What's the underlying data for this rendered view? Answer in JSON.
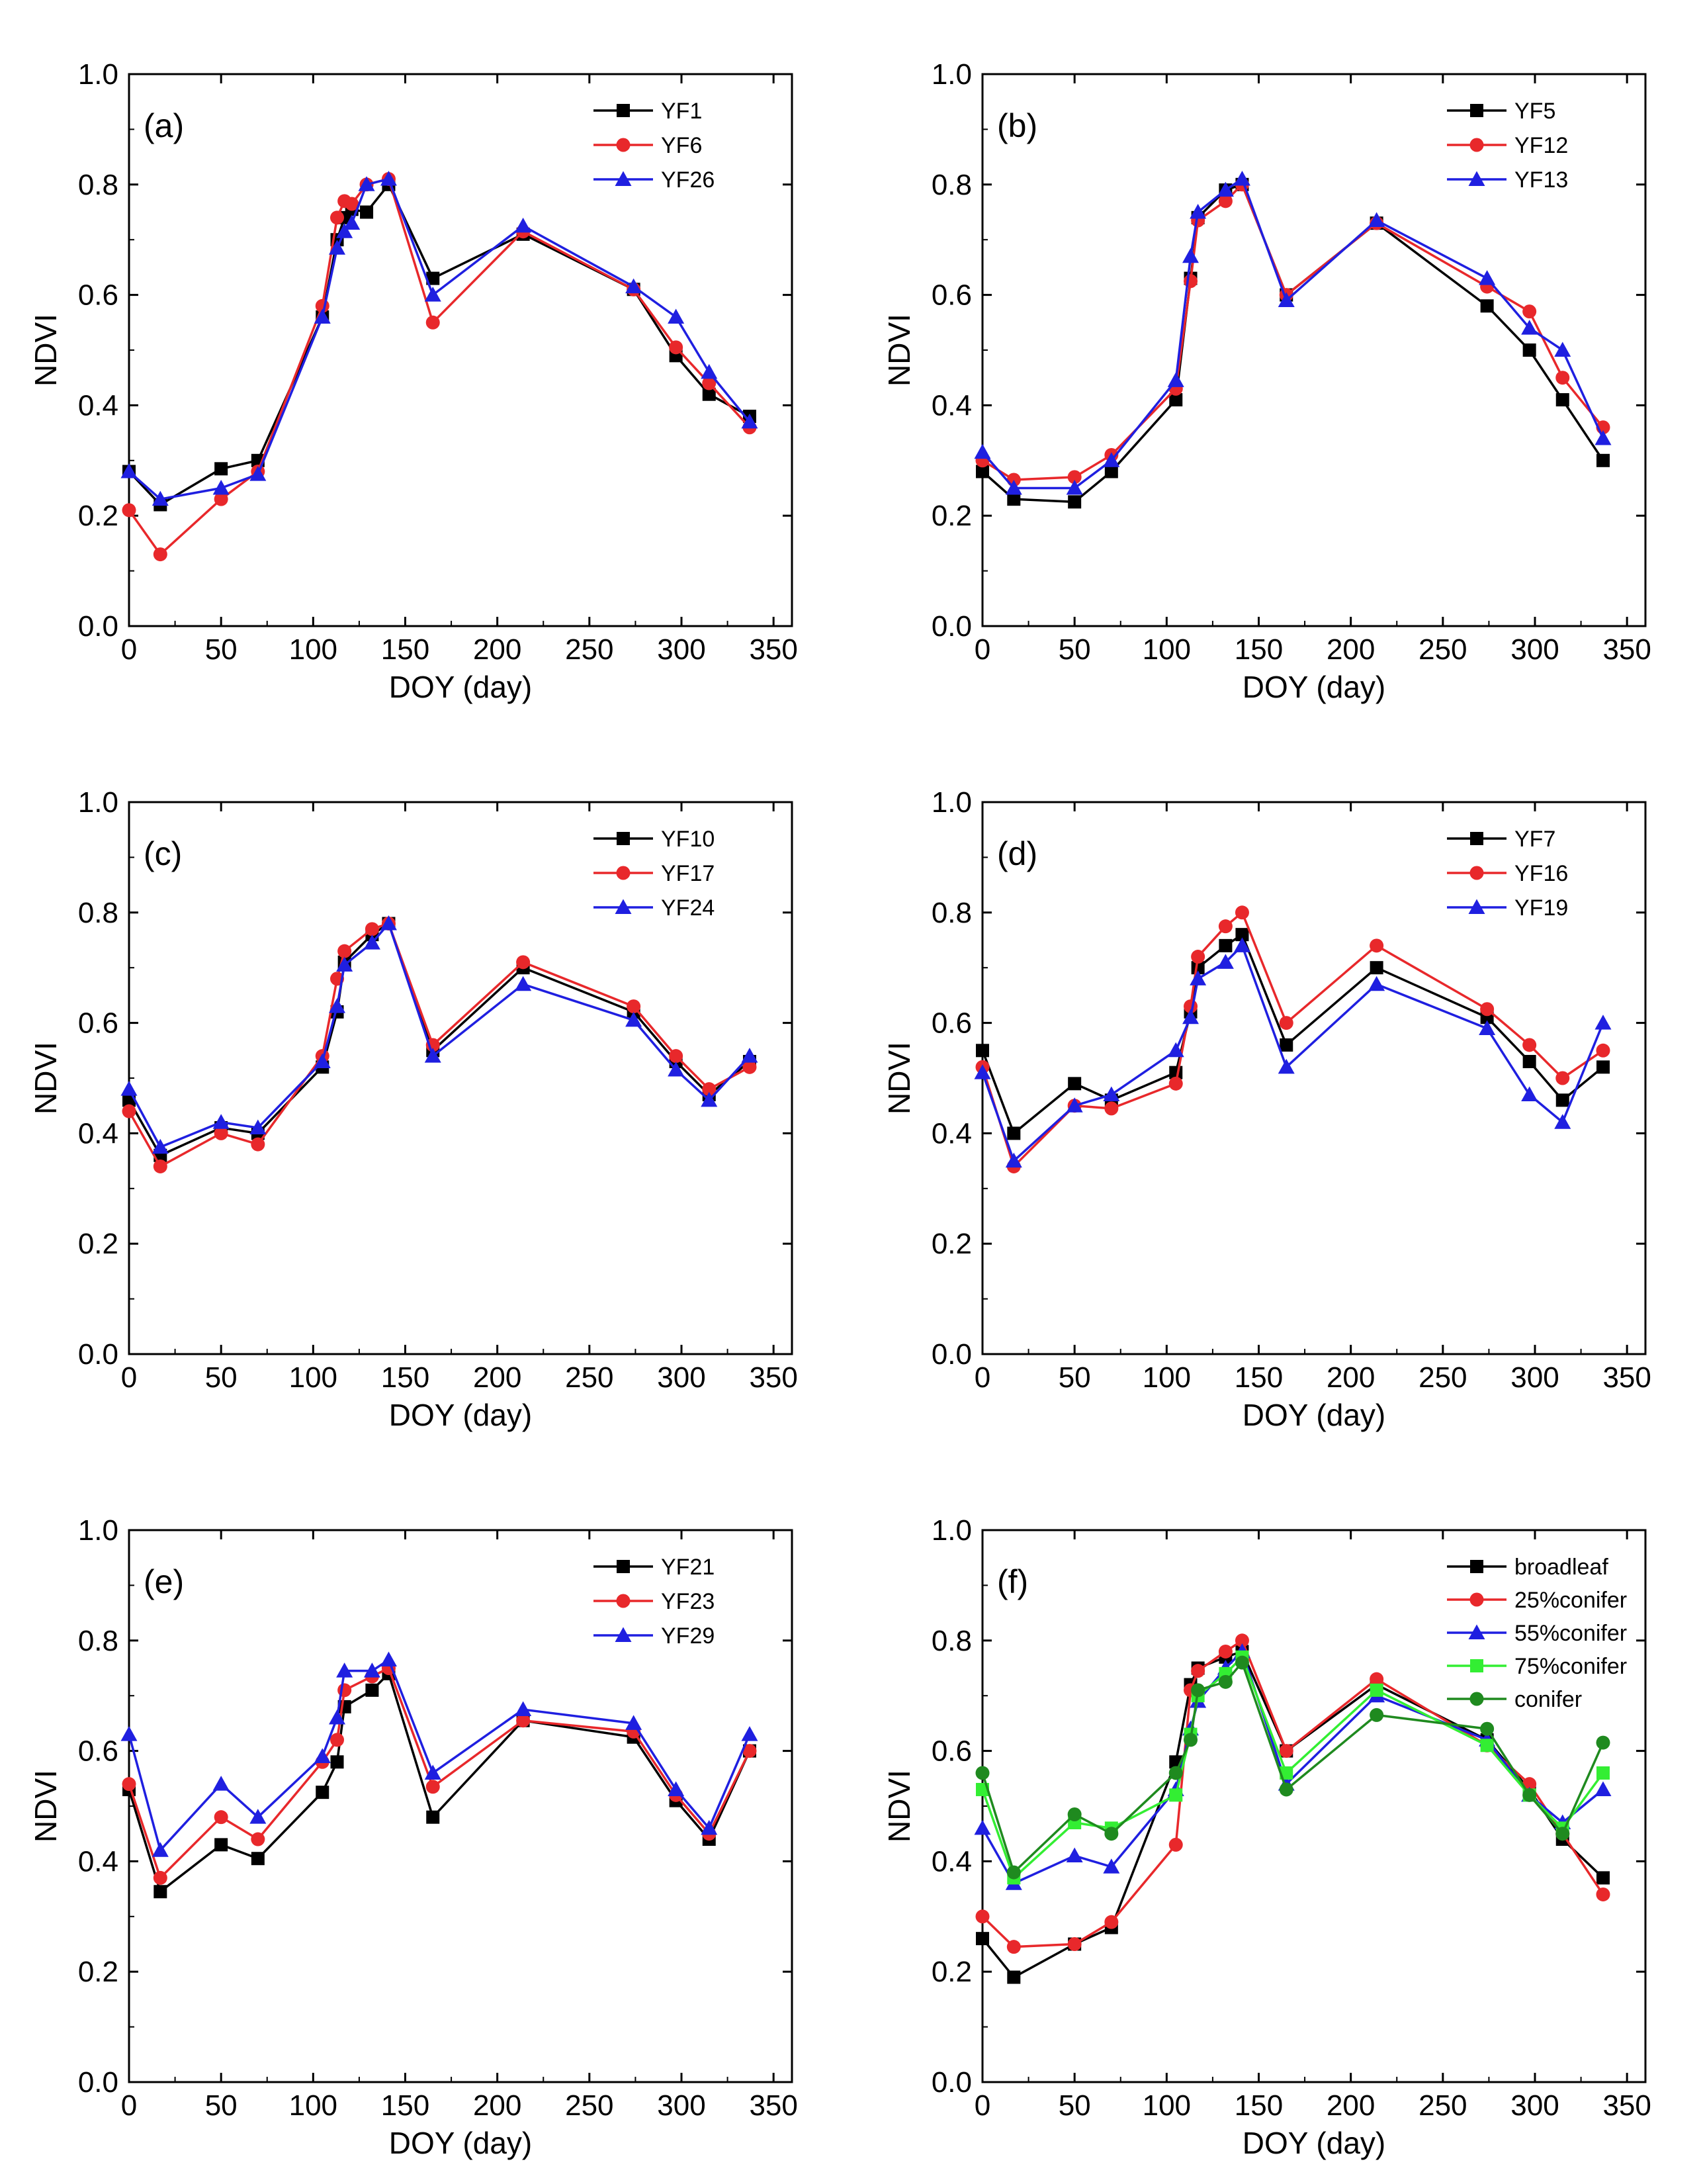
{
  "figure": {
    "x_axis_label": "DOY (day)",
    "y_axis_label": "NDVI",
    "x_ticks": [
      0,
      50,
      100,
      150,
      200,
      250,
      300,
      350
    ],
    "y_ticks": [
      "0.0",
      "0.2",
      "0.4",
      "0.6",
      "0.8",
      "1.0"
    ]
  },
  "chart_data": [
    {
      "type": "line",
      "panel": "(a)",
      "xlabel": "DOY (day)",
      "ylabel": "NDVI",
      "xlim": [
        0,
        360
      ],
      "ylim": [
        0,
        1.0
      ],
      "legend_position": "top-right",
      "series": [
        {
          "name": "YF1",
          "color": "#000000",
          "marker": "square",
          "x": [
            0,
            17,
            50,
            70,
            105,
            113,
            117,
            121,
            129,
            141,
            165,
            214,
            274,
            297,
            315,
            337
          ],
          "y": [
            0.28,
            0.22,
            0.285,
            0.3,
            0.56,
            0.7,
            0.74,
            0.755,
            0.75,
            0.8,
            0.63,
            0.71,
            0.61,
            0.49,
            0.42,
            0.38
          ]
        },
        {
          "name": "YF6",
          "color": "#e8282b",
          "marker": "circle",
          "x": [
            0,
            17,
            50,
            70,
            105,
            113,
            117,
            121,
            129,
            141,
            165,
            214,
            274,
            297,
            315,
            337
          ],
          "y": [
            0.21,
            0.13,
            0.23,
            0.28,
            0.58,
            0.74,
            0.77,
            0.765,
            0.8,
            0.81,
            0.55,
            0.715,
            0.61,
            0.505,
            0.44,
            0.36
          ]
        },
        {
          "name": "YF26",
          "color": "#1f1fe0",
          "marker": "triangle",
          "x": [
            0,
            17,
            50,
            70,
            105,
            113,
            117,
            121,
            129,
            141,
            165,
            214,
            274,
            297,
            315,
            337
          ],
          "y": [
            0.28,
            0.23,
            0.25,
            0.275,
            0.56,
            0.685,
            0.715,
            0.73,
            0.8,
            0.81,
            0.6,
            0.725,
            0.615,
            0.56,
            0.46,
            0.37
          ]
        }
      ]
    },
    {
      "type": "line",
      "panel": "(b)",
      "xlabel": "DOY (day)",
      "ylabel": "NDVI",
      "xlim": [
        0,
        360
      ],
      "ylim": [
        0,
        1.0
      ],
      "legend_position": "top-right",
      "series": [
        {
          "name": "YF5",
          "color": "#000000",
          "marker": "square",
          "x": [
            0,
            17,
            50,
            70,
            105,
            113,
            117,
            132,
            141,
            165,
            214,
            274,
            297,
            315,
            337
          ],
          "y": [
            0.28,
            0.23,
            0.225,
            0.28,
            0.41,
            0.63,
            0.74,
            0.79,
            0.8,
            0.6,
            0.73,
            0.58,
            0.5,
            0.41,
            0.3
          ]
        },
        {
          "name": "YF12",
          "color": "#e8282b",
          "marker": "circle",
          "x": [
            0,
            17,
            50,
            70,
            105,
            113,
            117,
            132,
            141,
            165,
            214,
            274,
            297,
            315,
            337
          ],
          "y": [
            0.3,
            0.265,
            0.27,
            0.31,
            0.43,
            0.625,
            0.735,
            0.77,
            0.8,
            0.6,
            0.73,
            0.615,
            0.57,
            0.45,
            0.36
          ]
        },
        {
          "name": "YF13",
          "color": "#1f1fe0",
          "marker": "triangle",
          "x": [
            0,
            17,
            50,
            70,
            105,
            113,
            117,
            132,
            141,
            165,
            214,
            274,
            297,
            315,
            337
          ],
          "y": [
            0.315,
            0.25,
            0.25,
            0.3,
            0.445,
            0.67,
            0.75,
            0.79,
            0.81,
            0.59,
            0.735,
            0.63,
            0.54,
            0.5,
            0.34
          ]
        }
      ]
    },
    {
      "type": "line",
      "panel": "(c)",
      "xlabel": "DOY (day)",
      "ylabel": "NDVI",
      "xlim": [
        0,
        360
      ],
      "ylim": [
        0,
        1.0
      ],
      "legend_position": "top-right",
      "series": [
        {
          "name": "YF10",
          "color": "#000000",
          "marker": "square",
          "x": [
            0,
            17,
            50,
            70,
            105,
            113,
            117,
            132,
            141,
            165,
            214,
            274,
            297,
            315,
            337
          ],
          "y": [
            0.46,
            0.36,
            0.41,
            0.4,
            0.52,
            0.62,
            0.71,
            0.76,
            0.78,
            0.55,
            0.7,
            0.62,
            0.53,
            0.47,
            0.53
          ]
        },
        {
          "name": "YF17",
          "color": "#e8282b",
          "marker": "circle",
          "x": [
            0,
            17,
            50,
            70,
            105,
            113,
            117,
            132,
            141,
            165,
            214,
            274,
            297,
            315,
            337
          ],
          "y": [
            0.44,
            0.34,
            0.4,
            0.38,
            0.54,
            0.68,
            0.73,
            0.77,
            0.78,
            0.56,
            0.71,
            0.63,
            0.54,
            0.48,
            0.52
          ]
        },
        {
          "name": "YF24",
          "color": "#1f1fe0",
          "marker": "triangle",
          "x": [
            0,
            17,
            50,
            70,
            105,
            113,
            117,
            132,
            141,
            165,
            214,
            274,
            297,
            315,
            337
          ],
          "y": [
            0.48,
            0.375,
            0.42,
            0.41,
            0.53,
            0.63,
            0.705,
            0.745,
            0.78,
            0.54,
            0.67,
            0.605,
            0.515,
            0.46,
            0.54
          ]
        }
      ]
    },
    {
      "type": "line",
      "panel": "(d)",
      "xlabel": "DOY (day)",
      "ylabel": "NDVI",
      "xlim": [
        0,
        360
      ],
      "ylim": [
        0,
        1.0
      ],
      "legend_position": "top-right",
      "series": [
        {
          "name": "YF7",
          "color": "#000000",
          "marker": "square",
          "x": [
            0,
            17,
            50,
            70,
            105,
            113,
            117,
            132,
            141,
            165,
            214,
            274,
            297,
            315,
            337
          ],
          "y": [
            0.55,
            0.4,
            0.49,
            0.46,
            0.51,
            0.62,
            0.7,
            0.74,
            0.76,
            0.56,
            0.7,
            0.61,
            0.53,
            0.46,
            0.52
          ]
        },
        {
          "name": "YF16",
          "color": "#e8282b",
          "marker": "circle",
          "x": [
            0,
            17,
            50,
            70,
            105,
            113,
            117,
            132,
            141,
            165,
            214,
            274,
            297,
            315,
            337
          ],
          "y": [
            0.52,
            0.34,
            0.45,
            0.445,
            0.49,
            0.63,
            0.72,
            0.775,
            0.8,
            0.6,
            0.74,
            0.625,
            0.56,
            0.5,
            0.55
          ]
        },
        {
          "name": "YF19",
          "color": "#1f1fe0",
          "marker": "triangle",
          "x": [
            0,
            17,
            50,
            70,
            105,
            113,
            117,
            132,
            141,
            165,
            214,
            274,
            297,
            315,
            337
          ],
          "y": [
            0.51,
            0.35,
            0.45,
            0.47,
            0.55,
            0.61,
            0.68,
            0.71,
            0.74,
            0.52,
            0.67,
            0.59,
            0.47,
            0.42,
            0.6
          ]
        }
      ]
    },
    {
      "type": "line",
      "panel": "(e)",
      "xlabel": "DOY (day)",
      "ylabel": "NDVI",
      "xlim": [
        0,
        360
      ],
      "ylim": [
        0,
        1.0
      ],
      "legend_position": "top-right",
      "series": [
        {
          "name": "YF21",
          "color": "#000000",
          "marker": "square",
          "x": [
            0,
            17,
            50,
            70,
            105,
            113,
            117,
            132,
            141,
            165,
            214,
            274,
            297,
            315,
            337
          ],
          "y": [
            0.53,
            0.345,
            0.43,
            0.405,
            0.525,
            0.58,
            0.68,
            0.71,
            0.74,
            0.48,
            0.655,
            0.625,
            0.51,
            0.44,
            0.6
          ]
        },
        {
          "name": "YF23",
          "color": "#e8282b",
          "marker": "circle",
          "x": [
            0,
            17,
            50,
            70,
            105,
            113,
            117,
            132,
            141,
            165,
            214,
            274,
            297,
            315,
            337
          ],
          "y": [
            0.54,
            0.37,
            0.48,
            0.44,
            0.58,
            0.62,
            0.71,
            0.735,
            0.75,
            0.535,
            0.655,
            0.635,
            0.52,
            0.45,
            0.6
          ]
        },
        {
          "name": "YF29",
          "color": "#1f1fe0",
          "marker": "triangle",
          "x": [
            0,
            17,
            50,
            70,
            105,
            113,
            117,
            132,
            141,
            165,
            214,
            274,
            297,
            315,
            337
          ],
          "y": [
            0.63,
            0.42,
            0.54,
            0.48,
            0.59,
            0.66,
            0.745,
            0.745,
            0.765,
            0.56,
            0.675,
            0.65,
            0.53,
            0.46,
            0.63
          ]
        }
      ]
    },
    {
      "type": "line",
      "panel": "(f)",
      "xlabel": "DOY (day)",
      "ylabel": "NDVI",
      "xlim": [
        0,
        360
      ],
      "ylim": [
        0,
        1.0
      ],
      "legend_position": "top-right",
      "series": [
        {
          "name": "broadleaf",
          "color": "#000000",
          "marker": "square",
          "x": [
            0,
            17,
            50,
            70,
            105,
            113,
            117,
            132,
            141,
            165,
            214,
            274,
            297,
            315,
            337
          ],
          "y": [
            0.26,
            0.19,
            0.25,
            0.28,
            0.58,
            0.72,
            0.75,
            0.77,
            0.78,
            0.6,
            0.72,
            0.62,
            0.53,
            0.44,
            0.37
          ]
        },
        {
          "name": "25%conifer",
          "color": "#e8282b",
          "marker": "circle",
          "x": [
            0,
            17,
            50,
            70,
            105,
            113,
            117,
            132,
            141,
            165,
            214,
            274,
            297,
            315,
            337
          ],
          "y": [
            0.3,
            0.245,
            0.25,
            0.29,
            0.43,
            0.71,
            0.745,
            0.78,
            0.8,
            0.6,
            0.73,
            0.61,
            0.54,
            0.45,
            0.34
          ]
        },
        {
          "name": "55%conifer",
          "color": "#1f1fe0",
          "marker": "triangle",
          "x": [
            0,
            17,
            50,
            70,
            105,
            113,
            117,
            132,
            141,
            165,
            214,
            274,
            297,
            315,
            337
          ],
          "y": [
            0.46,
            0.36,
            0.41,
            0.39,
            0.53,
            0.64,
            0.69,
            0.75,
            0.78,
            0.54,
            0.7,
            0.62,
            0.52,
            0.47,
            0.53
          ]
        },
        {
          "name": "75%conifer",
          "color": "#33ee33",
          "marker": "square",
          "x": [
            0,
            17,
            50,
            70,
            105,
            113,
            117,
            132,
            141,
            165,
            214,
            274,
            297,
            315,
            337
          ],
          "y": [
            0.53,
            0.37,
            0.47,
            0.46,
            0.52,
            0.63,
            0.7,
            0.74,
            0.77,
            0.56,
            0.71,
            0.61,
            0.52,
            0.46,
            0.56
          ]
        },
        {
          "name": "conifer",
          "color": "#1f8a1f",
          "marker": "circle",
          "x": [
            0,
            17,
            50,
            70,
            105,
            113,
            117,
            132,
            141,
            165,
            214,
            274,
            297,
            315,
            337
          ],
          "y": [
            0.56,
            0.38,
            0.485,
            0.45,
            0.56,
            0.62,
            0.71,
            0.725,
            0.76,
            0.53,
            0.665,
            0.64,
            0.52,
            0.45,
            0.615
          ]
        }
      ]
    }
  ]
}
